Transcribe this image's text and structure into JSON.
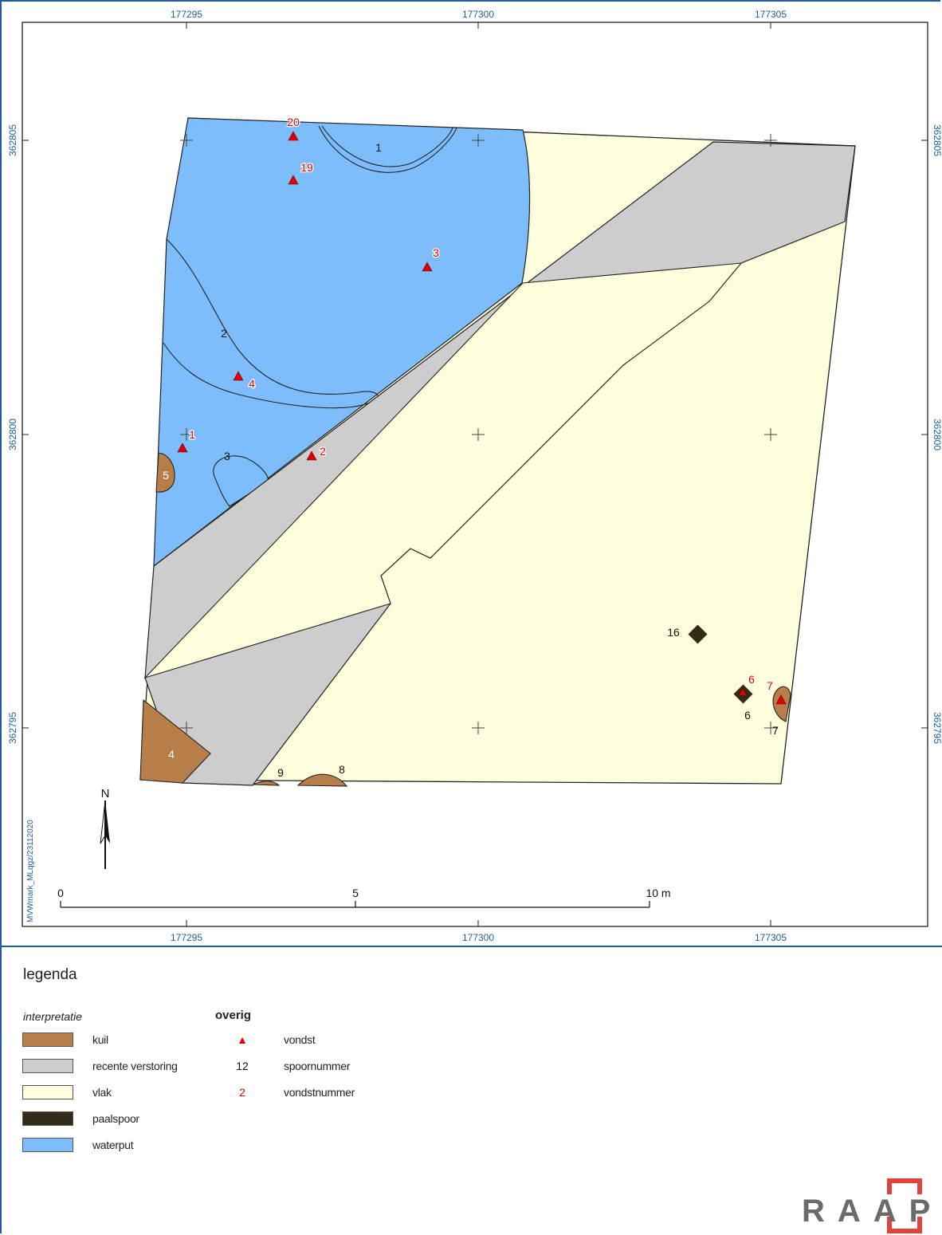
{
  "map": {
    "grid_x_labels": [
      "177295",
      "177300",
      "177305"
    ],
    "grid_y_labels": [
      "362805",
      "362800",
      "362795"
    ],
    "file_reference": "MVWmark_MLqgz/23112020",
    "north_label": "N",
    "scale_bar": {
      "labels": [
        "0",
        "5",
        "10 m"
      ]
    },
    "feature_numbers": [
      {
        "label": "1"
      },
      {
        "label": "2"
      },
      {
        "label": "3"
      },
      {
        "label": "4"
      },
      {
        "label": "5"
      },
      {
        "label": "6"
      },
      {
        "label": "7"
      },
      {
        "label": "8"
      },
      {
        "label": "9"
      },
      {
        "label": "16"
      }
    ],
    "find_numbers": [
      {
        "label": "20"
      },
      {
        "label": "19"
      },
      {
        "label": "3"
      },
      {
        "label": "4"
      },
      {
        "label": "1"
      },
      {
        "label": "2"
      },
      {
        "label": "6"
      },
      {
        "label": "7"
      }
    ]
  },
  "legend": {
    "title": "legenda",
    "interpretation_heading": "interpretatie",
    "interpretation_items": [
      {
        "label": "kuil",
        "color": "#b87e4a"
      },
      {
        "label": "recente verstoring",
        "color": "#cdcdcd"
      },
      {
        "label": "vlak",
        "color": "#fefedd"
      },
      {
        "label": "paalspoor",
        "color": "#332a18"
      },
      {
        "label": "waterput",
        "color": "#7dbdfc"
      }
    ],
    "other_heading": "overig",
    "other_items": [
      {
        "symbol": "▲",
        "symbol_color": "#e00000",
        "label": "vondst"
      },
      {
        "symbol": "12",
        "symbol_color": "#111111",
        "label": "spoornummer"
      },
      {
        "symbol": "2",
        "symbol_color": "#e00000",
        "label": "vondstnummer"
      }
    ]
  },
  "logo": {
    "text": "RAAP",
    "accent_color": "#e0433a"
  },
  "colors": {
    "frame_blue": "#1f5c99",
    "find_red": "#e00000"
  }
}
